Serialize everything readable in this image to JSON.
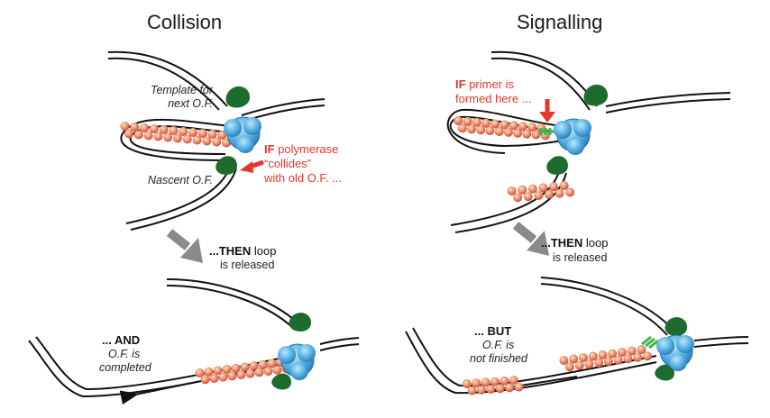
{
  "panels": {
    "collision": {
      "title": "Collision",
      "template_line1": "Template for",
      "template_line2": "next O.F.",
      "nascent": "Nascent O.F.",
      "if_word": "IF",
      "if_rest1": " polymerase",
      "if_rest2": "“collides”",
      "if_rest3": "with old O.F. ...",
      "then_word": "...THEN",
      "then_rest": " loop",
      "then_line2": "is released",
      "result_word": "... AND",
      "result_line2": "O.F. is",
      "result_line3": "completed"
    },
    "signalling": {
      "title": "Signalling",
      "if_word": "IF",
      "if_rest1": " primer is",
      "if_rest2": "formed here ...",
      "then_word": "...THEN",
      "then_rest": " loop",
      "then_line2": "is released",
      "result_word": "... BUT",
      "result_line2": "O.F. is",
      "result_line3": "not finished"
    }
  },
  "colors": {
    "accent_red": "#e8362b",
    "polymerase_blue": "#4aa8dd",
    "helicase_green": "#1e6b2e",
    "okazaki_bead": "#e86a5c",
    "arrow_gray": "#8a8a8a",
    "primer_green": "#3cb44b"
  },
  "icons": {
    "polymerase": "polymerase-icon",
    "helicase": "helicase-icon",
    "arrow": "arrow-icon"
  }
}
